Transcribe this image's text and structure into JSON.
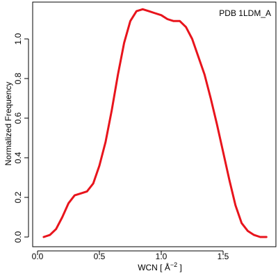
{
  "chart_data": {
    "type": "line",
    "title": "",
    "annotation": "PDB 1LDM_A",
    "xlabel_main": "WCN [ Å",
    "xlabel_sup": "−2",
    "xlabel_close": " ]",
    "ylabel": "Normalized Frequency",
    "xlim": [
      0.0,
      1.85
    ],
    "ylim": [
      0.0,
      1.15
    ],
    "x_ticks": [
      "0.0",
      "0.5",
      "1.0",
      "1.5"
    ],
    "y_ticks": [
      "0.0",
      "0.2",
      "0.4",
      "0.6",
      "0.8",
      "1.0"
    ],
    "grid": false,
    "legend_position": "top-right",
    "series": [
      {
        "color": "#e8141c",
        "x": [
          0.05,
          0.1,
          0.15,
          0.2,
          0.25,
          0.3,
          0.35,
          0.4,
          0.45,
          0.5,
          0.55,
          0.6,
          0.65,
          0.7,
          0.75,
          0.8,
          0.85,
          0.9,
          0.95,
          1.0,
          1.05,
          1.1,
          1.15,
          1.2,
          1.25,
          1.3,
          1.35,
          1.4,
          1.45,
          1.5,
          1.55,
          1.6,
          1.65,
          1.7,
          1.75,
          1.8,
          1.85
        ],
        "y": [
          0.0,
          0.01,
          0.04,
          0.1,
          0.17,
          0.21,
          0.22,
          0.23,
          0.27,
          0.36,
          0.48,
          0.64,
          0.82,
          0.98,
          1.09,
          1.14,
          1.15,
          1.14,
          1.13,
          1.12,
          1.1,
          1.09,
          1.09,
          1.06,
          1.0,
          0.91,
          0.82,
          0.7,
          0.57,
          0.43,
          0.29,
          0.16,
          0.07,
          0.03,
          0.01,
          0.0,
          0.0
        ]
      }
    ]
  }
}
